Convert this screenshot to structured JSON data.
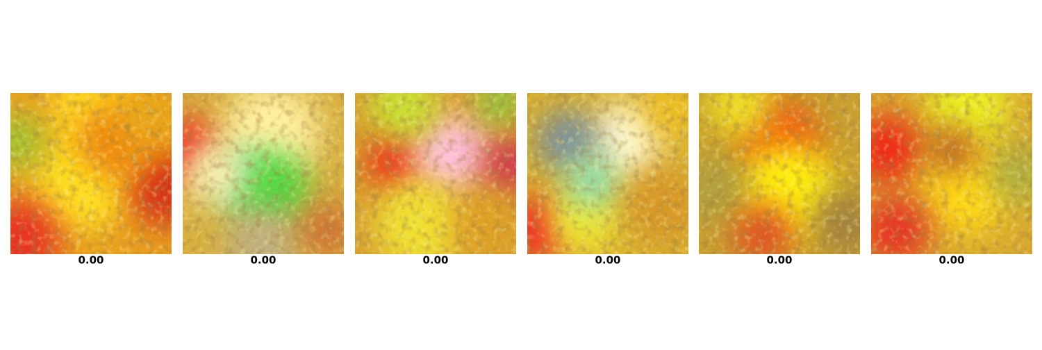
{
  "panels": [
    {
      "label": "0.00"
    },
    {
      "label": "0.00"
    },
    {
      "label": "0.00"
    },
    {
      "label": "0.00"
    },
    {
      "label": "0.00"
    },
    {
      "label": "0.00"
    }
  ]
}
